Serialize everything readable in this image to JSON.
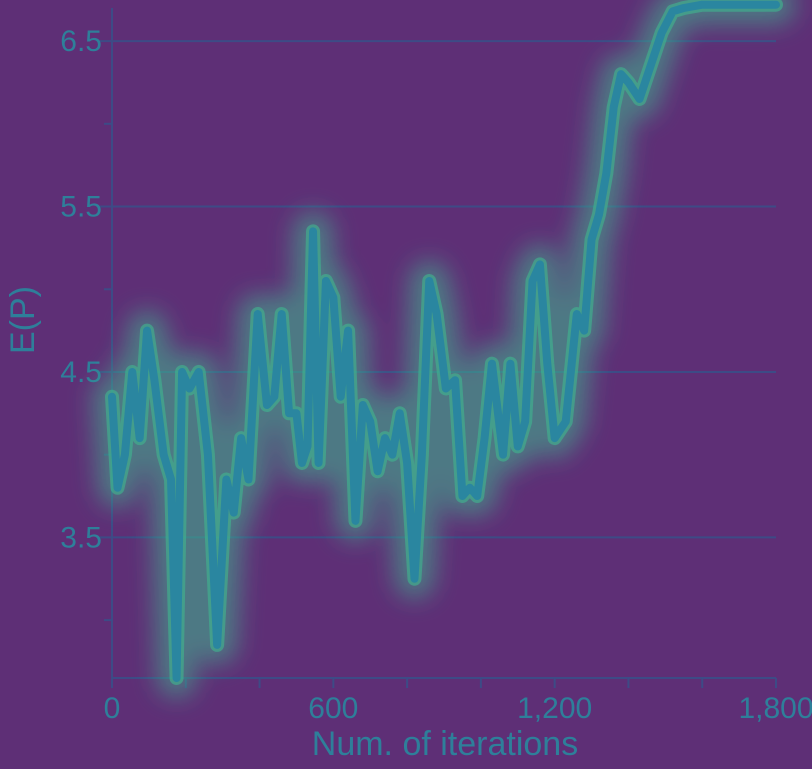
{
  "chart_data": {
    "type": "line",
    "title": "",
    "xlabel": "Num. of iterations",
    "ylabel": "E(P)",
    "xlim": [
      0,
      1800
    ],
    "ylim": [
      2.65,
      6.7
    ],
    "x_ticks": [
      0,
      600,
      1200,
      1800
    ],
    "x_tick_labels": [
      "0",
      "600",
      "1,200",
      "1,800"
    ],
    "y_ticks": [
      3.5,
      4.5,
      5.5,
      6.5
    ],
    "y_tick_labels": [
      "3.5",
      "4.5",
      "5.5",
      "6.5"
    ],
    "grid": "horizontal",
    "colors": {
      "background": "#5e2f76",
      "line": "#2a86a0",
      "glow": "#3fb78f",
      "grid": "#3d4b86",
      "text": "#2e7f9a"
    },
    "series": [
      {
        "x": [
          0,
          15,
          35,
          55,
          75,
          95,
          115,
          140,
          160,
          175,
          190,
          210,
          235,
          260,
          285,
          310,
          330,
          350,
          370,
          395,
          420,
          440,
          460,
          480,
          500,
          515,
          530,
          545,
          560,
          580,
          600,
          620,
          640,
          660,
          680,
          700,
          720,
          740,
          760,
          780,
          800,
          820,
          840,
          860,
          880,
          905,
          930,
          950,
          970,
          990,
          1010,
          1030,
          1060,
          1080,
          1100,
          1120,
          1140,
          1160,
          1180,
          1200,
          1230,
          1260,
          1280,
          1300,
          1320,
          1340,
          1360,
          1380,
          1400,
          1430,
          1460,
          1490,
          1520,
          1550,
          1600,
          1650,
          1700,
          1800
        ],
        "y": [
          4.35,
          3.8,
          4.0,
          4.5,
          4.1,
          4.75,
          4.45,
          4.0,
          3.85,
          2.65,
          4.5,
          4.4,
          4.5,
          4.0,
          2.85,
          3.85,
          3.65,
          4.1,
          3.85,
          4.85,
          4.3,
          4.35,
          4.85,
          4.25,
          4.25,
          3.95,
          4.05,
          5.35,
          3.95,
          5.05,
          4.95,
          4.35,
          4.75,
          3.6,
          4.3,
          4.2,
          3.9,
          4.1,
          4.0,
          4.25,
          3.95,
          3.25,
          4.0,
          5.05,
          4.85,
          4.4,
          4.45,
          3.75,
          3.8,
          3.75,
          4.1,
          4.55,
          4.0,
          4.55,
          4.05,
          4.2,
          5.05,
          5.15,
          4.55,
          4.1,
          4.2,
          4.85,
          4.75,
          5.3,
          5.45,
          5.7,
          6.1,
          6.3,
          6.25,
          6.15,
          6.35,
          6.55,
          6.68,
          6.7,
          6.72,
          6.72,
          6.72,
          6.72
        ]
      }
    ]
  }
}
